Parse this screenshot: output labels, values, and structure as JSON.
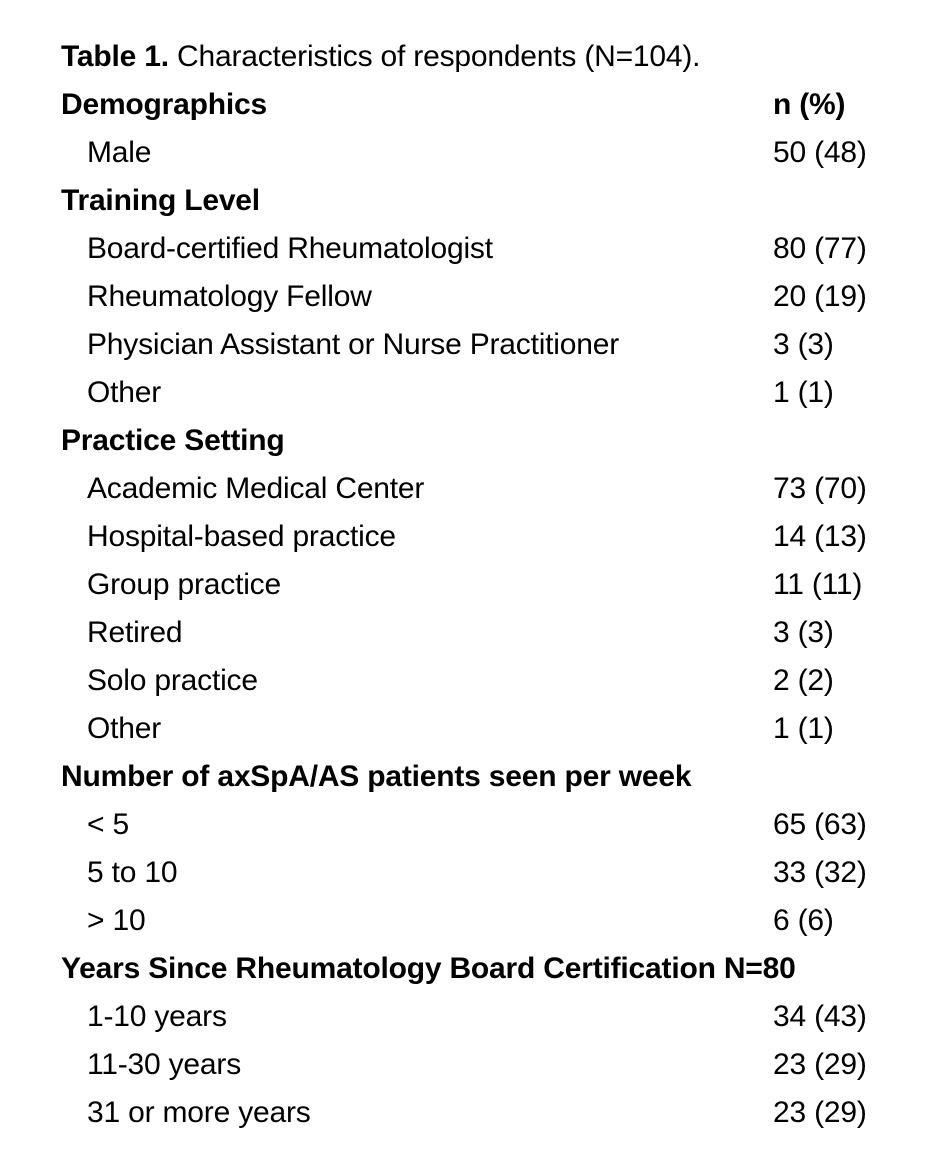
{
  "title": {
    "label_bold": "Table 1.",
    "label_rest": " Characteristics of respondents (N=104)."
  },
  "table": {
    "value_column_header": "n (%)",
    "sections": [
      {
        "header": "Demographics",
        "show_value_header": true,
        "rows": [
          {
            "label": "Male",
            "value": "50 (48)"
          }
        ]
      },
      {
        "header": "Training Level",
        "show_value_header": false,
        "rows": [
          {
            "label": "Board-certified Rheumatologist",
            "value": "80 (77)"
          },
          {
            "label": "Rheumatology Fellow",
            "value": "20 (19)"
          },
          {
            "label": "Physician Assistant or Nurse Practitioner",
            "value": "3 (3)"
          },
          {
            "label": "Other",
            "value": "1 (1)"
          }
        ]
      },
      {
        "header": "Practice Setting",
        "show_value_header": false,
        "rows": [
          {
            "label": "Academic Medical Center",
            "value": "73 (70)"
          },
          {
            "label": "Hospital-based practice",
            "value": "14 (13)"
          },
          {
            "label": "Group practice",
            "value": "11 (11)"
          },
          {
            "label": "Retired",
            "value": "3 (3)"
          },
          {
            "label": "Solo practice",
            "value": "2 (2)"
          },
          {
            "label": "Other",
            "value": "1 (1)"
          }
        ]
      },
      {
        "header": "Number of axSpA/AS patients seen per week",
        "show_value_header": false,
        "rows": [
          {
            "label": "< 5",
            "value": "65 (63)"
          },
          {
            "label": "5 to 10",
            "value": "33 (32)"
          },
          {
            "label": "> 10",
            "value": "6 (6)"
          }
        ]
      },
      {
        "header": "Years Since Rheumatology Board Certification N=80",
        "show_value_header": false,
        "rows": [
          {
            "label": "1-10 years",
            "value": "34 (43)"
          },
          {
            "label": "11-30 years",
            "value": "23 (29)"
          },
          {
            "label": "31 or more years",
            "value": "23 (29)"
          }
        ]
      }
    ]
  },
  "colors": {
    "text": "#000000",
    "background": "#ffffff"
  }
}
